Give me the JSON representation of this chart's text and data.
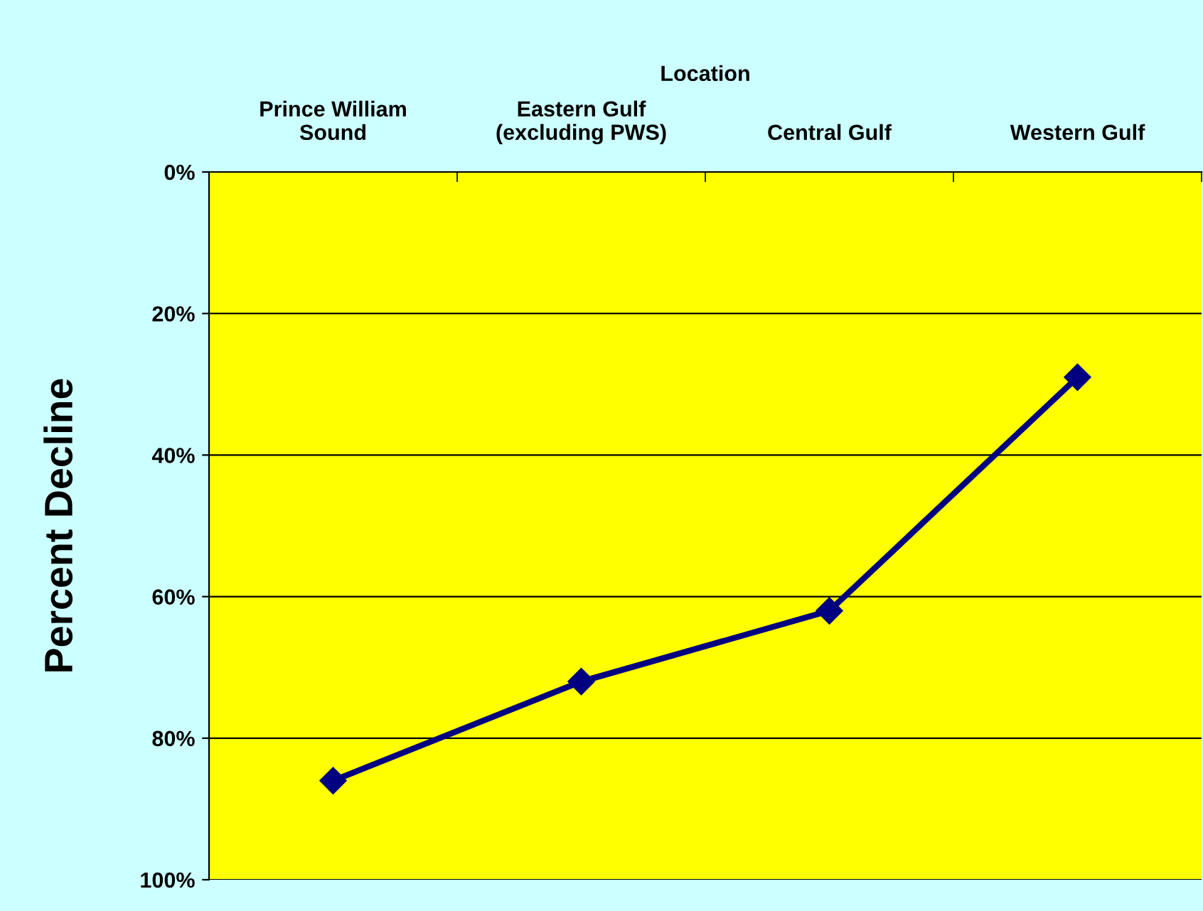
{
  "chart_data": {
    "type": "line",
    "xlabel": "Location",
    "ylabel": "Percent Decline",
    "categories": [
      "Prince William\nSound",
      "Eastern Gulf\n(excluding PWS)",
      "Central Gulf",
      "Western Gulf"
    ],
    "series": [
      {
        "color": "#000080",
        "values": [
          86,
          72,
          62,
          29
        ]
      }
    ],
    "ylim": [
      100,
      0
    ],
    "yticks": [
      {
        "value": 0,
        "label": "0%"
      },
      {
        "value": 20,
        "label": "20%"
      },
      {
        "value": 40,
        "label": "40%"
      },
      {
        "value": 60,
        "label": "60%"
      },
      {
        "value": 80,
        "label": "80%"
      },
      {
        "value": 100,
        "label": "100%"
      }
    ],
    "grid": "y",
    "marker": "diamond",
    "line_style": "solid"
  }
}
